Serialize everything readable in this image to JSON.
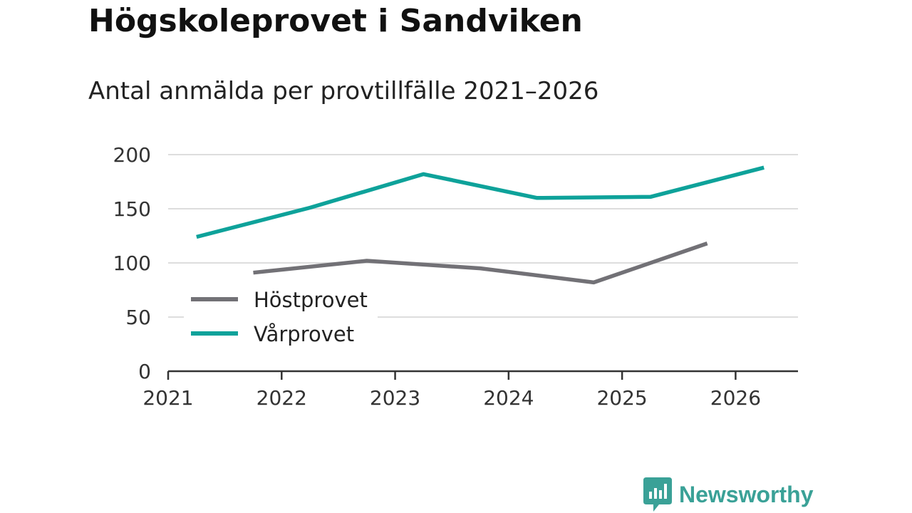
{
  "header": {
    "title": "Högskoleprovet i Sandviken",
    "subtitle": "Antal anmälda per provtillfälle 2021–2026"
  },
  "brand": {
    "name": "Newsworthy",
    "logo_icon": "bar-chart-bubble-icon"
  },
  "colors": {
    "hostprovet": "#727176",
    "varprovet": "#0ea29a",
    "grid": "#dddddd",
    "axis": "#333333",
    "brand": "#3aa197"
  },
  "chart_data": {
    "type": "line",
    "title": "Högskoleprovet i Sandviken",
    "subtitle": "Antal anmälda per provtillfälle 2021–2026",
    "xlabel": "",
    "ylabel": "",
    "xlim": [
      2021,
      2026.55
    ],
    "ylim": [
      0,
      200
    ],
    "yticks": [
      0,
      50,
      100,
      150,
      200
    ],
    "xticks": [
      2021,
      2022,
      2023,
      2024,
      2025,
      2026
    ],
    "xtick_labels": [
      "2021",
      "2022",
      "2023",
      "2024",
      "2025",
      "2026"
    ],
    "grid": true,
    "legend_position": "bottom-left",
    "series": [
      {
        "name": "Höstprovet",
        "color": "#727176",
        "x": [
          2021.75,
          2022.75,
          2023.75,
          2024.75,
          2025.75
        ],
        "values": [
          91,
          102,
          95,
          82,
          118
        ]
      },
      {
        "name": "Vårprovet",
        "color": "#0ea29a",
        "x": [
          2021.25,
          2022.25,
          2023.25,
          2024.25,
          2025.25,
          2026.25
        ],
        "values": [
          124,
          151,
          182,
          160,
          161,
          188
        ]
      }
    ]
  }
}
